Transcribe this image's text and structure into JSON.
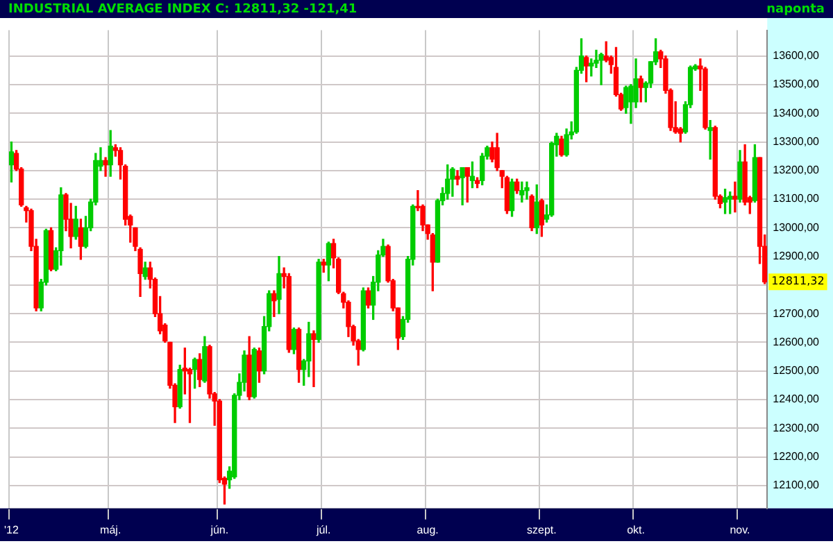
{
  "chart_data": {
    "type": "candlestick",
    "title": "INDUSTRIAL AVERAGE INDEX C: 12811,32 -121,41",
    "subtitle": "naponta",
    "categories": [
      "'12",
      null,
      null,
      null,
      null,
      null,
      null,
      null,
      null,
      null,
      null,
      null,
      null,
      null,
      null,
      null,
      null,
      null,
      null,
      null,
      "máj.",
      null,
      null,
      null,
      null,
      null,
      null,
      null,
      null,
      null,
      null,
      null,
      null,
      null,
      null,
      null,
      null,
      null,
      null,
      null,
      null,
      null,
      "jún.",
      null,
      null,
      null,
      null,
      null,
      null,
      null,
      null,
      null,
      null,
      null,
      null,
      null,
      null,
      null,
      null,
      null,
      null,
      null,
      null,
      "júl.",
      null,
      null,
      null,
      null,
      null,
      null,
      null,
      null,
      null,
      null,
      null,
      null,
      null,
      null,
      null,
      null,
      null,
      null,
      null,
      null,
      "aug.",
      null,
      null,
      null,
      null,
      null,
      null,
      null,
      null,
      null,
      null,
      null,
      null,
      null,
      null,
      null,
      null,
      null,
      null,
      null,
      null,
      null,
      null,
      "szept.",
      null,
      null,
      null,
      null,
      null,
      null,
      null,
      null,
      null,
      null,
      null,
      null,
      null,
      null,
      null,
      null,
      null,
      null,
      "okt.",
      null,
      null,
      null,
      null,
      null,
      null,
      null,
      null,
      null,
      null,
      null,
      null,
      null,
      null,
      null,
      null,
      null,
      null,
      null,
      null,
      "nov.",
      null,
      null,
      null,
      null,
      null
    ],
    "ohlc": [
      [
        13220,
        13300,
        13160,
        13265
      ],
      [
        13260,
        13270,
        13200,
        13205
      ],
      [
        13205,
        13210,
        13075,
        13080
      ],
      [
        13070,
        13075,
        13020,
        13060
      ],
      [
        13060,
        13065,
        12920,
        12935
      ],
      [
        12935,
        12960,
        12710,
        12720
      ],
      [
        12720,
        12820,
        12710,
        12810
      ],
      [
        12810,
        12995,
        12800,
        12990
      ],
      [
        12990,
        13000,
        12850,
        12855
      ],
      [
        12855,
        12930,
        12850,
        12920
      ],
      [
        12920,
        13140,
        12870,
        13115
      ],
      [
        13115,
        13120,
        12990,
        13030
      ],
      [
        13030,
        13085,
        12930,
        12970
      ],
      [
        12970,
        13075,
        12960,
        13030
      ],
      [
        13000,
        13030,
        12890,
        12935
      ],
      [
        12935,
        13040,
        12930,
        13000
      ],
      [
        13000,
        13100,
        12990,
        13090
      ],
      [
        13090,
        13260,
        13080,
        13235
      ],
      [
        13215,
        13280,
        13200,
        13235
      ],
      [
        13235,
        13245,
        13180,
        13220
      ],
      [
        13220,
        13340,
        13180,
        13285
      ],
      [
        13280,
        13290,
        13250,
        13270
      ],
      [
        13270,
        13280,
        13170,
        13220
      ],
      [
        13215,
        13220,
        13010,
        13030
      ],
      [
        13040,
        13045,
        12950,
        13010
      ],
      [
        13000,
        13000,
        12920,
        12935
      ],
      [
        12925,
        12930,
        12760,
        12840
      ],
      [
        12830,
        12880,
        12820,
        12860
      ],
      [
        12860,
        12880,
        12790,
        12820
      ],
      [
        12820,
        12825,
        12690,
        12700
      ],
      [
        12700,
        12760,
        12630,
        12640
      ],
      [
        12660,
        12665,
        12600,
        12605
      ],
      [
        12600,
        12600,
        12440,
        12450
      ],
      [
        12450,
        12455,
        12320,
        12375
      ],
      [
        12375,
        12520,
        12370,
        12505
      ],
      [
        12510,
        12580,
        12420,
        12500
      ],
      [
        12505,
        12510,
        12320,
        12490
      ],
      [
        12505,
        12545,
        12440,
        12540
      ],
      [
        12540,
        12560,
        12445,
        12470
      ],
      [
        12465,
        12620,
        12460,
        12585
      ],
      [
        12585,
        12590,
        12405,
        12420
      ],
      [
        12420,
        12425,
        12310,
        12395
      ],
      [
        12395,
        12400,
        12110,
        12120
      ],
      [
        12125,
        12130,
        12035,
        12105
      ],
      [
        12120,
        12165,
        12090,
        12150
      ],
      [
        12130,
        12420,
        12125,
        12415
      ],
      [
        12415,
        12490,
        12400,
        12460
      ],
      [
        12460,
        12570,
        12430,
        12555
      ],
      [
        12555,
        12620,
        12400,
        12410
      ],
      [
        12410,
        12580,
        12405,
        12575
      ],
      [
        12570,
        12580,
        12460,
        12500
      ],
      [
        12500,
        12690,
        12490,
        12655
      ],
      [
        12655,
        12780,
        12640,
        12770
      ],
      [
        12770,
        12780,
        12690,
        12745
      ],
      [
        12750,
        12900,
        12700,
        12840
      ],
      [
        12840,
        12860,
        12790,
        12830
      ],
      [
        12830,
        12840,
        12565,
        12575
      ],
      [
        12575,
        12650,
        12560,
        12645
      ],
      [
        12645,
        12650,
        12460,
        12505
      ],
      [
        12505,
        12540,
        12450,
        12535
      ],
      [
        12535,
        12670,
        12480,
        12630
      ],
      [
        12630,
        12640,
        12445,
        12610
      ],
      [
        12610,
        12890,
        12600,
        12880
      ],
      [
        12880,
        12890,
        12845,
        12870
      ],
      [
        12870,
        12950,
        12815,
        12945
      ],
      [
        12945,
        12960,
        12860,
        12895
      ],
      [
        12890,
        12895,
        12770,
        12775
      ],
      [
        12770,
        12775,
        12720,
        12740
      ],
      [
        12740,
        12745,
        12620,
        12655
      ],
      [
        12655,
        12660,
        12590,
        12605
      ],
      [
        12605,
        12610,
        12520,
        12575
      ],
      [
        12575,
        12790,
        12570,
        12780
      ],
      [
        12780,
        12790,
        12720,
        12730
      ],
      [
        12730,
        12830,
        12680,
        12810
      ],
      [
        12810,
        12920,
        12780,
        12905
      ],
      [
        12905,
        12960,
        12900,
        12935
      ],
      [
        12935,
        12940,
        12810,
        12815
      ],
      [
        12815,
        12820,
        12710,
        12720
      ],
      [
        12720,
        12720,
        12575,
        12615
      ],
      [
        12620,
        12690,
        12610,
        12680
      ],
      [
        12680,
        12900,
        12670,
        12890
      ],
      [
        12890,
        13080,
        12870,
        13075
      ],
      [
        13075,
        13130,
        13060,
        13070
      ],
      [
        13075,
        13080,
        12990,
        13010
      ],
      [
        13010,
        13010,
        12960,
        12980
      ],
      [
        12975,
        12980,
        12780,
        12880
      ],
      [
        12880,
        13100,
        12880,
        13095
      ],
      [
        13095,
        13140,
        13080,
        13120
      ],
      [
        13120,
        13220,
        13100,
        13170
      ],
      [
        13170,
        13210,
        13110,
        13205
      ],
      [
        13180,
        13200,
        13150,
        13170
      ],
      [
        13175,
        13210,
        13080,
        13210
      ],
      [
        13210,
        13210,
        13090,
        13180
      ],
      [
        13165,
        13230,
        13140,
        13180
      ],
      [
        13165,
        13175,
        13140,
        13155
      ],
      [
        13165,
        13260,
        13150,
        13250
      ],
      [
        13250,
        13285,
        13240,
        13280
      ],
      [
        13280,
        13300,
        13230,
        13240
      ],
      [
        13280,
        13330,
        13200,
        13210
      ],
      [
        13200,
        13200,
        13140,
        13180
      ],
      [
        13175,
        13180,
        13050,
        13060
      ],
      [
        13060,
        13170,
        13040,
        13160
      ],
      [
        13160,
        13170,
        13120,
        13130
      ],
      [
        13115,
        13160,
        13090,
        13130
      ],
      [
        13130,
        13160,
        13100,
        13140
      ],
      [
        13110,
        13115,
        12990,
        13000
      ],
      [
        13000,
        13150,
        12980,
        13090
      ],
      [
        13095,
        13100,
        12970,
        13010
      ],
      [
        13030,
        13080,
        13020,
        13045
      ],
      [
        13045,
        13300,
        13040,
        13295
      ],
      [
        13290,
        13330,
        13250,
        13320
      ],
      [
        13310,
        13320,
        13250,
        13255
      ],
      [
        13255,
        13345,
        13250,
        13325
      ],
      [
        13325,
        13370,
        13310,
        13335
      ],
      [
        13335,
        13560,
        13330,
        13550
      ],
      [
        13550,
        13660,
        13540,
        13600
      ],
      [
        13595,
        13600,
        13510,
        13565
      ],
      [
        13565,
        13590,
        13530,
        13575
      ],
      [
        13575,
        13620,
        13560,
        13585
      ],
      [
        13585,
        13610,
        13500,
        13605
      ],
      [
        13600,
        13650,
        13580,
        13585
      ],
      [
        13595,
        13600,
        13540,
        13570
      ],
      [
        13560,
        13630,
        13460,
        13465
      ],
      [
        13465,
        13470,
        13410,
        13415
      ],
      [
        13420,
        13495,
        13400,
        13490
      ],
      [
        13440,
        13500,
        13365,
        13495
      ],
      [
        13440,
        13590,
        13420,
        13520
      ],
      [
        13520,
        13530,
        13440,
        13490
      ],
      [
        13490,
        13510,
        13440,
        13505
      ],
      [
        13505,
        13580,
        13490,
        13580
      ],
      [
        13580,
        13660,
        13570,
        13615
      ],
      [
        13615,
        13620,
        13560,
        13590
      ],
      [
        13590,
        13600,
        13470,
        13480
      ],
      [
        13480,
        13485,
        13340,
        13350
      ],
      [
        13350,
        13440,
        13330,
        13335
      ],
      [
        13345,
        13350,
        13300,
        13330
      ],
      [
        13335,
        13440,
        13330,
        13430
      ],
      [
        13430,
        13565,
        13420,
        13560
      ],
      [
        13555,
        13570,
        13550,
        13565
      ],
      [
        13565,
        13590,
        13480,
        13555
      ],
      [
        13555,
        13560,
        13345,
        13350
      ],
      [
        13340,
        13375,
        13240,
        13350
      ],
      [
        13350,
        13355,
        13100,
        13110
      ],
      [
        13110,
        13115,
        13070,
        13085
      ],
      [
        13090,
        13135,
        13050,
        13105
      ],
      [
        13100,
        13125,
        13050,
        13110
      ],
      [
        13110,
        13160,
        13055,
        13100
      ],
      [
        13100,
        13270,
        13090,
        13230
      ],
      [
        13230,
        13290,
        13080,
        13090
      ],
      [
        13105,
        13110,
        13050,
        13090
      ],
      [
        13095,
        13290,
        13090,
        13245
      ],
      [
        13245,
        13245,
        12875,
        12935
      ],
      [
        12935,
        12975,
        12805,
        12811.32
      ]
    ],
    "colors": [
      "#00cc00",
      "#ff0000",
      "#ff0000",
      "#ff0000",
      "#ff0000",
      "#ff0000",
      "#00cc00",
      "#00cc00",
      "#ff0000",
      "#00cc00",
      "#00cc00",
      "#ff0000",
      "#ff0000",
      "#00cc00",
      "#ff0000",
      "#00cc00",
      "#00cc00",
      "#00cc00",
      "#00cc00",
      "#ff0000",
      "#00cc00",
      "#ff0000",
      "#ff0000",
      "#ff0000",
      "#ff0000",
      "#ff0000",
      "#ff0000",
      "#00cc00",
      "#ff0000",
      "#ff0000",
      "#ff0000",
      "#ff0000",
      "#ff0000",
      "#ff0000",
      "#00cc00",
      "#ff0000",
      "#ff0000",
      "#00cc00",
      "#ff0000",
      "#00cc00",
      "#ff0000",
      "#ff0000",
      "#ff0000",
      "#ff0000",
      "#00cc00",
      "#00cc00",
      "#00cc00",
      "#00cc00",
      "#ff0000",
      "#00cc00",
      "#ff0000",
      "#00cc00",
      "#00cc00",
      "#ff0000",
      "#00cc00",
      "#ff0000",
      "#ff0000",
      "#00cc00",
      "#ff0000",
      "#00cc00",
      "#00cc00",
      "#ff0000",
      "#00cc00",
      "#ff0000",
      "#00cc00",
      "#ff0000",
      "#ff0000",
      "#ff0000",
      "#ff0000",
      "#ff0000",
      "#ff0000",
      "#00cc00",
      "#ff0000",
      "#00cc00",
      "#00cc00",
      "#00cc00",
      "#ff0000",
      "#ff0000",
      "#ff0000",
      "#00cc00",
      "#00cc00",
      "#00cc00",
      "#ff0000",
      "#ff0000",
      "#ff0000",
      "#ff0000",
      "#00cc00",
      "#00cc00",
      "#00cc00",
      "#00cc00",
      "#ff0000",
      "#00cc00",
      "#ff0000",
      "#00cc00",
      "#ff0000",
      "#00cc00",
      "#00cc00",
      "#ff0000",
      "#ff0000",
      "#ff0000",
      "#ff0000",
      "#00cc00",
      "#ff0000",
      "#00cc00",
      "#00cc00",
      "#ff0000",
      "#00cc00",
      "#ff0000",
      "#00cc00",
      "#00cc00",
      "#00cc00",
      "#ff0000",
      "#00cc00",
      "#00cc00",
      "#00cc00",
      "#00cc00",
      "#ff0000",
      "#00cc00",
      "#00cc00",
      "#00cc00",
      "#ff0000",
      "#ff0000",
      "#ff0000",
      "#ff0000",
      "#00cc00",
      "#00cc00",
      "#00cc00",
      "#ff0000",
      "#00cc00",
      "#00cc00",
      "#00cc00",
      "#ff0000",
      "#ff0000",
      "#ff0000",
      "#ff0000",
      "#ff0000",
      "#00cc00",
      "#00cc00",
      "#00cc00",
      "#ff0000",
      "#ff0000",
      "#00cc00",
      "#ff0000",
      "#ff0000",
      "#00cc00",
      "#00cc00",
      "#ff0000",
      "#00cc00",
      "#ff0000",
      "#ff0000",
      "#00cc00",
      "#ff0000",
      "#ff0000"
    ],
    "ylim": [
      12020,
      13690
    ],
    "yticks": [
      {
        "value": 12100,
        "label": "12100,00"
      },
      {
        "value": 12200,
        "label": "12200,00"
      },
      {
        "value": 12300,
        "label": "12300,00"
      },
      {
        "value": 12400,
        "label": "12400,00"
      },
      {
        "value": 12500,
        "label": "12500,00"
      },
      {
        "value": 12600,
        "label": "12600,00"
      },
      {
        "value": 12700,
        "label": "12700,00"
      },
      {
        "value": 12800,
        "label": null
      },
      {
        "value": 12900,
        "label": "12900,00"
      },
      {
        "value": 13000,
        "label": "13000,00"
      },
      {
        "value": 13100,
        "label": "13100,00"
      },
      {
        "value": 13200,
        "label": "13200,00"
      },
      {
        "value": 13300,
        "label": "13300,00"
      },
      {
        "value": 13400,
        "label": "13400,00"
      },
      {
        "value": 13500,
        "label": "13500,00"
      },
      {
        "value": 13600,
        "label": "13600,00"
      }
    ],
    "annotations": [
      "12811,32"
    ],
    "grid": true,
    "legend": false
  }
}
